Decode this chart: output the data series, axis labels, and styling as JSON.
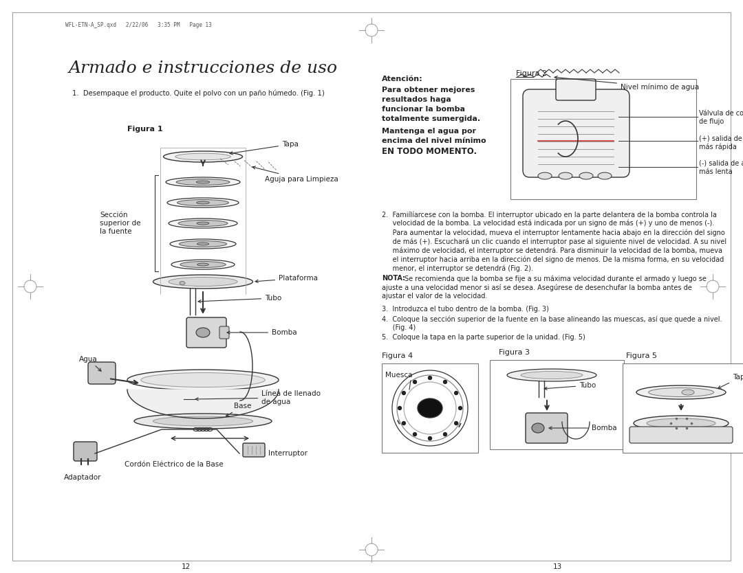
{
  "bg_color": "#ffffff",
  "page_width": 10.8,
  "page_height": 8.34,
  "header_text": "WFL-ETN-A_SP.qxd   2/22/06   3:35 PM   Page 13",
  "title": "Armado e instrucciones de uso",
  "step1": "1.  Desempaque el producto. Quite el polvo con un paño húmedo. (Fig. 1)",
  "fig1_label": "Figura 1",
  "fig2_label": "Figura 2",
  "fig3_label": "Figura 3",
  "fig4_label": "Figura 4",
  "fig5_label": "Figura 5",
  "attencion_bold1": "Atención:",
  "attencion_bold2": "Para obtener mejores\nresultados haga\nfuncionar la bomba\ntotalmente sumergida.",
  "attencion_bold3": "Mantenga el agua por\nencima del nivel mínimo\nEN TODO MOMENTO.",
  "fig2_nivel": "Nivel mínimo de agua",
  "fig2_valvula": "Válvula de control\nde flujo",
  "fig2_plus": "(+) salida de agua\nmás rápida",
  "fig2_minus": "(-) salida de agua\nmás lenta",
  "fig1_tapa": "Tapa",
  "fig1_aguja": "Aguja para Limpieza",
  "fig1_seccion": "Sección\nsuperior de\nla fuente",
  "fig1_plataforma": "Plataforma",
  "fig1_tubo": "Tubo",
  "fig1_agua": "Agua",
  "fig1_bomba": "Bomba",
  "fig1_linea": "Línea de llenado\nde agua",
  "fig1_base": "Base",
  "fig1_adaptador": "Adaptador",
  "fig1_cordon": "Cordón Eléctrico de la Base",
  "fig1_interruptor": "Interruptor",
  "nota_bold": "NOTA:",
  "nota_text": " Se recomienda que la bomba se fije a su máxima velocidad durante el armado y luego se\najuste a una velocidad menor si así se desea. Asegúrese de desenchufar la bomba antes de\najustar el valor de la velocidad.",
  "step2_lines": [
    "2.  Famiílíarcese con la bomba. El interruptor ubicado en la parte delantera de la bomba controla la",
    "     velocidad de la bomba. La velocidad está indicada por un signo de más (+) y uno de menos (-).",
    "     Para aumentar la velocidad, mueva el interruptor lentamente hacia abajo en la dirección del signo",
    "     de más (+). Escuchará un clic cuando el interruptor pase al siguiente nivel de velocidad. A su nivel",
    "     máximo de velocidad, el interruptor se detendrá. Para disminuir la velocidad de la bomba, mueva",
    "     el interruptor hacia arriba en la dirección del signo de menos. De la misma forma, en su velocidad",
    "     menor, el interruptor se detendrá (Fig. 2)."
  ],
  "step3": "3.  Introduzca el tubo dentro de la bomba. (Fig. 3)",
  "step4a": "4.  Coloque la sección superior de la fuente en la base alineando las muescas, así que quede a nivel.",
  "step4b": "     (Fig. 4)",
  "step5": "5.  Coloque la tapa en la parte superior de la unidad. (Fig. 5)",
  "fig3_tubo": "Tubo",
  "fig3_bomba": "Bomba",
  "fig4_muesca": "Muesca",
  "fig5_tapa": "Tapa",
  "page_num_left": "12",
  "page_num_right": "13",
  "lc": "#333333",
  "tc": "#222222"
}
